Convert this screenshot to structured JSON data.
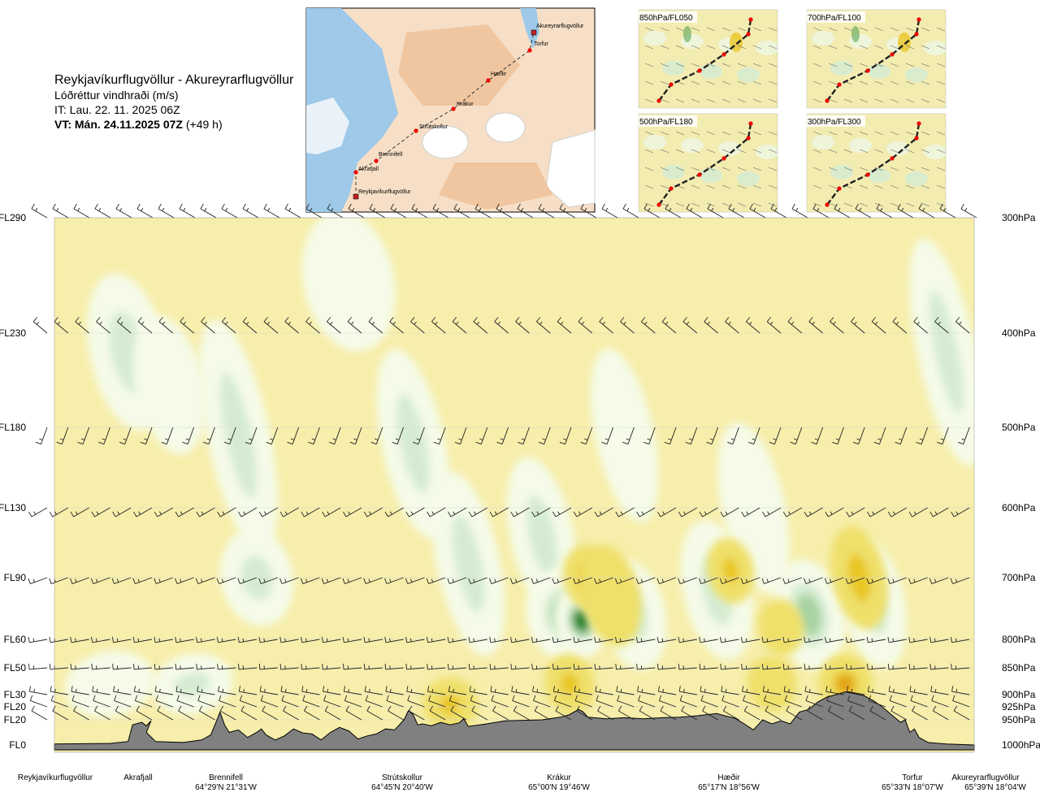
{
  "header": {
    "route": "Reykjavíkurflugvöllur - Akureyrarflugvöllur",
    "parameter": "Lóðréttur vindhraði (m/s)",
    "init_time": "IT: Lau. 22. 11. 2025 06Z",
    "valid_prefix": "VT: Mán. 24.11.2025 07Z",
    "valid_suffix": "(+49 h)"
  },
  "route_map": {
    "labels": [
      "Akureyrarflugvöllur",
      "Torfur",
      "Hæðir",
      "Krákur",
      "Strútskollur",
      "Brennifell",
      "Akrafjall",
      "Reykjavíkurflugvöllur"
    ]
  },
  "level_maps": [
    "850hPa/FL050",
    "700hPa/FL100",
    "500hPa/FL180",
    "300hPa/FL300"
  ],
  "colors": {
    "background": "#f6eeaa",
    "updraft_weak": "#f5fbe8",
    "updraft_light": "#d6ecd2",
    "updraft_mid": "#a8d3a3",
    "updraft_strong": "#5aa35a",
    "updraft_max": "#1f7f2a",
    "downdraft_light": "#efe06a",
    "downdraft_mid": "#e9c623",
    "downdraft_strong": "#e2a11a",
    "downdraft_max": "#c97a21",
    "terrain": "#808080",
    "sea": "#9ec9e8",
    "land": "#f3caa3"
  },
  "chart_data": {
    "type": "heatmap",
    "title": "Lóðréttur vindhraði (m/s)",
    "y_left_ticks": [
      "FL290",
      "FL230",
      "FL180",
      "FL130",
      "FL90",
      "FL60",
      "FL50",
      "FL30",
      "FL20",
      "FL20",
      "FL0"
    ],
    "y_right_ticks": [
      "300hPa",
      "400hPa",
      "500hPa",
      "600hPa",
      "700hPa",
      "800hPa",
      "850hPa",
      "900hPa",
      "925hPa",
      "950hPa",
      "1000hPa"
    ],
    "pressure_levels_hPa": [
      300,
      400,
      500,
      600,
      700,
      800,
      850,
      900,
      925,
      950,
      1000
    ],
    "x_waypoints": [
      {
        "name": "Reykjavíkurflugvöllur",
        "coord": "",
        "pos": 0.0
      },
      {
        "name": "Akrafjall",
        "coord": "",
        "pos": 0.09
      },
      {
        "name": "Brennifell",
        "coord": "64°29'N 21°31'W",
        "pos": 0.185
      },
      {
        "name": "Strútskollur",
        "coord": "64°45'N 20°40'W",
        "pos": 0.385
      },
      {
        "name": "Krákur",
        "coord": "65°00'N 19°46'W",
        "pos": 0.57
      },
      {
        "name": "Hæðir",
        "coord": "65°17'N 18°56'W",
        "pos": 0.76
      },
      {
        "name": "Torfur",
        "coord": "65°33'N 18°07'W",
        "pos": 0.945
      },
      {
        "name": "Akureyrarflugvöllur",
        "coord": "65°39'N 18°04'W",
        "pos": 1.0
      }
    ],
    "terrain_profile_hPa": [
      [
        0.0,
        998
      ],
      [
        0.06,
        997
      ],
      [
        0.08,
        993
      ],
      [
        0.085,
        960
      ],
      [
        0.095,
        955
      ],
      [
        0.1,
        962
      ],
      [
        0.105,
        952
      ],
      [
        0.1,
        975
      ],
      [
        0.11,
        993
      ],
      [
        0.14,
        995
      ],
      [
        0.16,
        990
      ],
      [
        0.17,
        980
      ],
      [
        0.175,
        958
      ],
      [
        0.18,
        935
      ],
      [
        0.185,
        960
      ],
      [
        0.19,
        975
      ],
      [
        0.2,
        970
      ],
      [
        0.21,
        985
      ],
      [
        0.22,
        975
      ],
      [
        0.225,
        968
      ],
      [
        0.23,
        980
      ],
      [
        0.24,
        990
      ],
      [
        0.25,
        982
      ],
      [
        0.26,
        968
      ],
      [
        0.27,
        976
      ],
      [
        0.28,
        978
      ],
      [
        0.29,
        990
      ],
      [
        0.3,
        975
      ],
      [
        0.31,
        965
      ],
      [
        0.32,
        972
      ],
      [
        0.33,
        988
      ],
      [
        0.34,
        982
      ],
      [
        0.35,
        978
      ],
      [
        0.36,
        968
      ],
      [
        0.37,
        970
      ],
      [
        0.375,
        960
      ],
      [
        0.38,
        950
      ],
      [
        0.385,
        932
      ],
      [
        0.39,
        940
      ],
      [
        0.395,
        960
      ],
      [
        0.4,
        958
      ],
      [
        0.41,
        962
      ],
      [
        0.42,
        955
      ],
      [
        0.43,
        960
      ],
      [
        0.44,
        956
      ],
      [
        0.445,
        948
      ],
      [
        0.45,
        963
      ],
      [
        0.47,
        958
      ],
      [
        0.49,
        952
      ],
      [
        0.51,
        951
      ],
      [
        0.53,
        950
      ],
      [
        0.55,
        945
      ],
      [
        0.56,
        940
      ],
      [
        0.57,
        930
      ],
      [
        0.575,
        935
      ],
      [
        0.58,
        945
      ],
      [
        0.6,
        948
      ],
      [
        0.62,
        946
      ],
      [
        0.64,
        948
      ],
      [
        0.66,
        946
      ],
      [
        0.68,
        945
      ],
      [
        0.7,
        942
      ],
      [
        0.72,
        938
      ],
      [
        0.74,
        947
      ],
      [
        0.75,
        958
      ],
      [
        0.76,
        970
      ],
      [
        0.765,
        960
      ],
      [
        0.77,
        950
      ],
      [
        0.78,
        958
      ],
      [
        0.79,
        952
      ],
      [
        0.8,
        958
      ],
      [
        0.81,
        935
      ],
      [
        0.82,
        930
      ],
      [
        0.83,
        915
      ],
      [
        0.84,
        905
      ],
      [
        0.85,
        900
      ],
      [
        0.86,
        895
      ],
      [
        0.87,
        898
      ],
      [
        0.88,
        902
      ],
      [
        0.89,
        912
      ],
      [
        0.9,
        925
      ],
      [
        0.91,
        940
      ],
      [
        0.92,
        955
      ],
      [
        0.925,
        950
      ],
      [
        0.93,
        975
      ],
      [
        0.935,
        968
      ],
      [
        0.94,
        985
      ],
      [
        0.95,
        995
      ],
      [
        0.97,
        998
      ],
      [
        1.0,
        1000
      ]
    ],
    "regions": [
      {
        "kind": "updraft",
        "x": 0.08,
        "p": 420,
        "w": 0.045,
        "h": 120,
        "strength": 2
      },
      {
        "kind": "updraft",
        "x": 0.125,
        "p": 455,
        "w": 0.035,
        "h": 110,
        "strength": 1
      },
      {
        "kind": "updraft",
        "x": 0.2,
        "p": 510,
        "w": 0.03,
        "h": 230,
        "strength": 2
      },
      {
        "kind": "updraft",
        "x": 0.22,
        "p": 700,
        "w": 0.04,
        "h": 90,
        "strength": 2
      },
      {
        "kind": "updraft",
        "x": 0.32,
        "p": 355,
        "w": 0.06,
        "h": 90,
        "strength": 1
      },
      {
        "kind": "updraft",
        "x": 0.39,
        "p": 520,
        "w": 0.03,
        "h": 180,
        "strength": 2
      },
      {
        "kind": "updraft",
        "x": 0.45,
        "p": 680,
        "w": 0.03,
        "h": 220,
        "strength": 2
      },
      {
        "kind": "updraft",
        "x": 0.53,
        "p": 640,
        "w": 0.03,
        "h": 170,
        "strength": 2
      },
      {
        "kind": "updraft",
        "x": 0.555,
        "p": 760,
        "w": 0.045,
        "h": 90,
        "strength": 3
      },
      {
        "kind": "updraft",
        "x": 0.573,
        "p": 770,
        "w": 0.02,
        "h": 50,
        "strength": 5
      },
      {
        "kind": "updraft",
        "x": 0.62,
        "p": 510,
        "w": 0.025,
        "h": 160,
        "strength": 1
      },
      {
        "kind": "updraft",
        "x": 0.63,
        "p": 760,
        "w": 0.03,
        "h": 120,
        "strength": 2
      },
      {
        "kind": "updraft",
        "x": 0.72,
        "p": 720,
        "w": 0.035,
        "h": 160,
        "strength": 2
      },
      {
        "kind": "updraft",
        "x": 0.76,
        "p": 600,
        "w": 0.03,
        "h": 180,
        "strength": 1
      },
      {
        "kind": "updraft",
        "x": 0.82,
        "p": 760,
        "w": 0.04,
        "h": 120,
        "strength": 3
      },
      {
        "kind": "updraft",
        "x": 0.89,
        "p": 740,
        "w": 0.03,
        "h": 150,
        "strength": 2
      },
      {
        "kind": "updraft",
        "x": 0.97,
        "p": 420,
        "w": 0.025,
        "h": 190,
        "strength": 2
      },
      {
        "kind": "updraft",
        "x": 0.06,
        "p": 880,
        "w": 0.06,
        "h": 50,
        "strength": 1
      },
      {
        "kind": "updraft",
        "x": 0.15,
        "p": 880,
        "w": 0.05,
        "h": 40,
        "strength": 2
      },
      {
        "kind": "downdraft",
        "x": 0.43,
        "p": 920,
        "w": 0.02,
        "h": 30,
        "strength": 2
      },
      {
        "kind": "downdraft",
        "x": 0.58,
        "p": 700,
        "w": 0.015,
        "h": 40,
        "strength": 2
      },
      {
        "kind": "downdraft",
        "x": 0.605,
        "p": 730,
        "w": 0.025,
        "h": 100,
        "strength": 1
      },
      {
        "kind": "downdraft",
        "x": 0.56,
        "p": 880,
        "w": 0.015,
        "h": 40,
        "strength": 2
      },
      {
        "kind": "downdraft",
        "x": 0.735,
        "p": 690,
        "w": 0.012,
        "h": 40,
        "strength": 2
      },
      {
        "kind": "downdraft",
        "x": 0.79,
        "p": 780,
        "w": 0.01,
        "h": 30,
        "strength": 1
      },
      {
        "kind": "downdraft",
        "x": 0.875,
        "p": 700,
        "w": 0.02,
        "h": 100,
        "strength": 2
      },
      {
        "kind": "downdraft",
        "x": 0.86,
        "p": 880,
        "w": 0.02,
        "h": 40,
        "strength": 3
      },
      {
        "kind": "downdraft",
        "x": 0.78,
        "p": 880,
        "w": 0.015,
        "h": 30,
        "strength": 1
      }
    ],
    "wind_barb_rows": [
      {
        "level": "300hPa",
        "direction_deg": 300,
        "speed_kt": 20
      },
      {
        "level": "400hPa",
        "direction_deg": 310,
        "speed_kt": 15
      },
      {
        "level": "500hPa",
        "direction_deg": 200,
        "speed_kt": 15
      },
      {
        "level": "600hPa",
        "direction_deg": 240,
        "speed_kt": 20
      },
      {
        "level": "700hPa",
        "direction_deg": 250,
        "speed_kt": 20
      },
      {
        "level": "800hPa",
        "direction_deg": 260,
        "speed_kt": 15
      },
      {
        "level": "850hPa",
        "direction_deg": 265,
        "speed_kt": 15
      },
      {
        "level": "900hPa",
        "direction_deg": 280,
        "speed_kt": 15
      },
      {
        "level": "925hPa",
        "direction_deg": 290,
        "speed_kt": 10
      },
      {
        "level": "950hPa",
        "direction_deg": 300,
        "speed_kt": 10
      }
    ]
  }
}
